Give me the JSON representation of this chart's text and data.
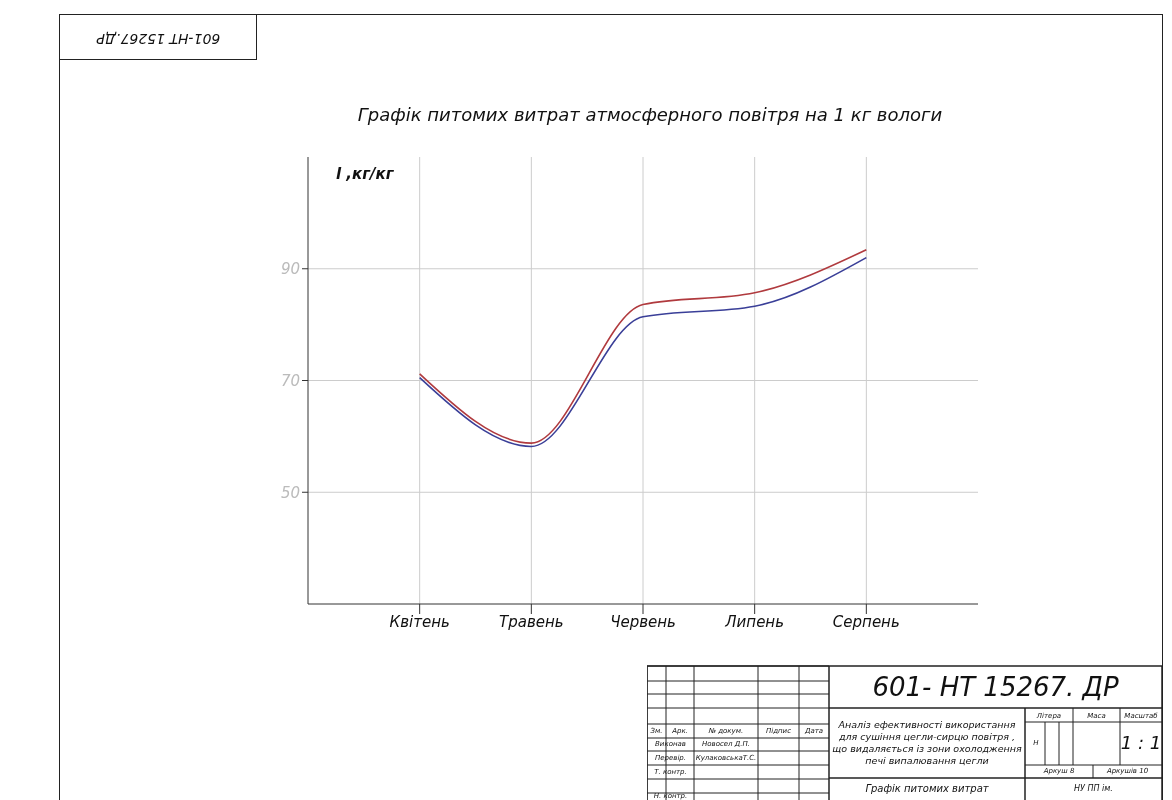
{
  "chart_data": {
    "type": "line",
    "title": "Графік питомих витрат атмосферного повітря на 1 кг вологи",
    "ylabel": "l ,кг/кг",
    "categories": [
      null,
      "Квітень",
      "Травень",
      "Червень",
      "Липень",
      "Серпень",
      null
    ],
    "series": [
      {
        "color": "#b03a3e",
        "values": [
          null,
          71.2,
          58.8,
          83.6,
          85.7,
          93.4,
          null
        ]
      },
      {
        "color": "#3a3f98",
        "values": [
          null,
          70.5,
          58.2,
          81.4,
          83.3,
          92.0,
          null
        ]
      }
    ],
    "ylim": [
      30,
      110
    ],
    "yticks": [
      50,
      70,
      90
    ],
    "grid": true,
    "marker": "none",
    "line_style": "solid",
    "annotations": [
      "601-НТ 15267.ДР",
      "601- НТ 15267. ДР",
      "Зм.",
      "Арк.",
      "№ докум.",
      "Підпис",
      "Дата",
      "Виконав",
      "Новосел Д.П.",
      "Перевір.",
      "КулаковськаТ.С.",
      "Т. контр.",
      "Н. контр.",
      "Аналіз ефективності використання для сушіння цегли-сирцю повітря , що видаляється із зони охолодження печі випалювання цегли",
      "Літера",
      "Маса",
      "Масштаб",
      "Н",
      "1 : 1",
      "Аркуш 8",
      "Аркушів 10",
      "Графік питомих витрат",
      "НУ ПП ім."
    ]
  }
}
